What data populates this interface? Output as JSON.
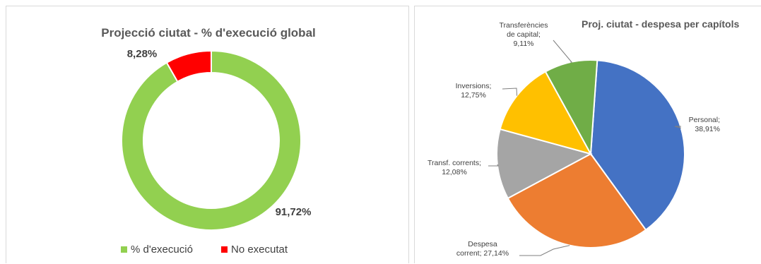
{
  "chart_data": [
    {
      "type": "donut",
      "title": "Projecció ciutat  -  % d'execució global",
      "series": [
        {
          "name": "% d'execució",
          "value": 91.72,
          "label": "91,72%",
          "color": "#92d050"
        },
        {
          "name": "No executat",
          "value": 8.28,
          "label": "8,28%",
          "color": "#ff0000"
        }
      ],
      "legend": "bottom"
    },
    {
      "type": "pie",
      "title": "Proj. ciutat - despesa per capítols",
      "slices": [
        {
          "value": 38.91,
          "color": "#4472c4",
          "label_lines": [
            "Personal;",
            "38,91%"
          ]
        },
        {
          "value": 27.14,
          "color": "#ed7d31",
          "label_lines": [
            "Despesa",
            "corrent; 27,14%"
          ]
        },
        {
          "value": 12.08,
          "color": "#a5a5a5",
          "label_lines": [
            "Transf. corrents;",
            "12,08%"
          ]
        },
        {
          "value": 12.75,
          "color": "#ffc000",
          "label_lines": [
            "Inversions;",
            "12,75%"
          ]
        },
        {
          "value": 9.11,
          "color": "#70ad47",
          "label_lines": [
            "Transferències",
            "de capital;",
            "9,11%"
          ]
        }
      ],
      "legend": "none"
    }
  ]
}
